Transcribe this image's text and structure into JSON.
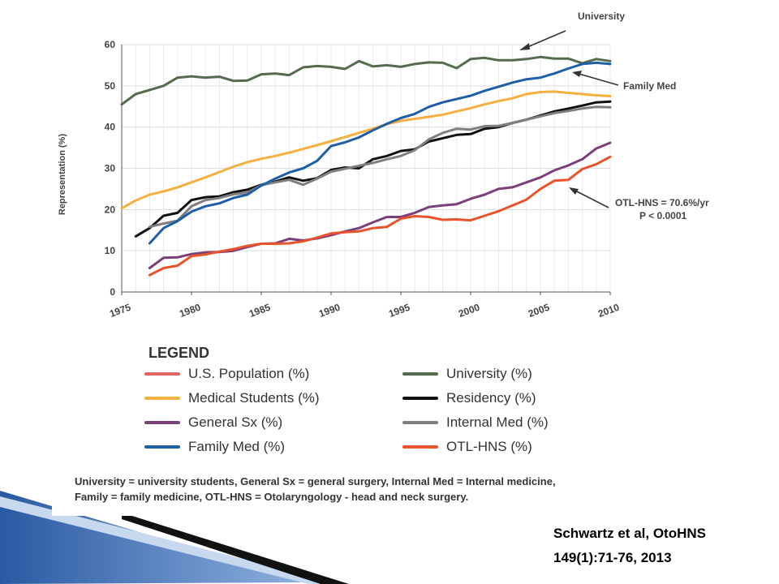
{
  "chart_data": {
    "type": "line",
    "ylabel": "Representation (%)",
    "xlabel": "",
    "xlim": [
      1975,
      2010
    ],
    "ylim": [
      0,
      60
    ],
    "x_ticks": [
      "1975",
      "1980",
      "1985",
      "1990",
      "1995",
      "2000",
      "2005",
      "2010"
    ],
    "y_ticks": [
      "0",
      "10",
      "20",
      "30",
      "40",
      "50",
      "60"
    ],
    "grid": true,
    "series": [
      {
        "name": "U.S. Population (%)",
        "color": "#e06666",
        "x": [],
        "values": []
      },
      {
        "name": "University (%)",
        "color": "#556b4e",
        "x": [
          1975,
          1976,
          1977,
          1978,
          1979,
          1980,
          1981,
          1982,
          1983,
          1984,
          1985,
          1986,
          1987,
          1988,
          1989,
          1990,
          1991,
          1992,
          1993,
          1994,
          1995,
          1996,
          1997,
          1998,
          1999,
          2000,
          2001,
          2002,
          2003,
          2004,
          2005,
          2006,
          2007,
          2008,
          2009,
          2010
        ],
        "values": [
          45.5,
          48,
          49,
          50,
          52,
          52.3,
          52,
          52.2,
          51.2,
          51.3,
          52.8,
          53,
          52.6,
          54.5,
          54.8,
          54.6,
          54.1,
          56,
          54.7,
          55,
          54.6,
          55.3,
          55.7,
          55.6,
          54.3,
          56.5,
          56.8,
          56.2,
          56.2,
          56.5,
          57,
          56.6,
          56.6,
          55.5,
          56.5,
          56
        ]
      },
      {
        "name": "Medical Students (%)",
        "color": "#f5b041",
        "x": [
          1975,
          1976,
          1977,
          1978,
          1979,
          1980,
          1981,
          1982,
          1983,
          1984,
          1985,
          1986,
          1987,
          1988,
          1989,
          1990,
          1991,
          1992,
          1993,
          1994,
          1995,
          1996,
          1997,
          1998,
          1999,
          2000,
          2001,
          2002,
          2003,
          2004,
          2005,
          2006,
          2007,
          2008,
          2009,
          2010
        ],
        "values": [
          20.3,
          22.2,
          23.6,
          24.4,
          25.4,
          26.6,
          27.8,
          29.1,
          30.4,
          31.5,
          32.3,
          33,
          33.8,
          34.7,
          35.6,
          36.6,
          37.6,
          38.6,
          39.6,
          40.7,
          41.5,
          42,
          42.5,
          43,
          43.8,
          44.6,
          45.5,
          46.3,
          47,
          48,
          48.5,
          48.6,
          48.3,
          48,
          47.7,
          47.5
        ]
      },
      {
        "name": "Residency (%)",
        "color": "#111111",
        "x": [
          1976,
          1977,
          1978,
          1979,
          1980,
          1981,
          1982,
          1983,
          1984,
          1985,
          1986,
          1987,
          1988,
          1989,
          1990,
          1991,
          1992,
          1993,
          1994,
          1995,
          1996,
          1997,
          1998,
          1999,
          2000,
          2001,
          2002,
          2003,
          2004,
          2005,
          2006,
          2007,
          2008,
          2009,
          2010
        ],
        "values": [
          13.5,
          15.5,
          18.5,
          19.2,
          22.3,
          23,
          23.2,
          24.2,
          24.8,
          26,
          26.8,
          27.8,
          27,
          27.6,
          29.6,
          30.2,
          30,
          32.2,
          33,
          34.2,
          34.6,
          36.5,
          37.3,
          38.1,
          38.3,
          39.6,
          40,
          41,
          41.8,
          42.8,
          43.8,
          44.5,
          45.2,
          46,
          46.2
        ]
      },
      {
        "name": "General Sx (%)",
        "color": "#7b3f7a",
        "x": [
          1977,
          1978,
          1979,
          1980,
          1981,
          1982,
          1983,
          1984,
          1985,
          1986,
          1987,
          1988,
          1989,
          1990,
          1991,
          1992,
          1993,
          1994,
          1995,
          1996,
          1997,
          1998,
          1999,
          2000,
          2001,
          2002,
          2003,
          2004,
          2005,
          2006,
          2007,
          2008,
          2009,
          2010
        ],
        "values": [
          5.8,
          8.3,
          8.4,
          9.2,
          9.6,
          9.7,
          10,
          10.9,
          11.7,
          11.8,
          12.9,
          12.5,
          13,
          13.8,
          14.7,
          15.5,
          16.9,
          18.2,
          18.2,
          19.2,
          20.6,
          21,
          21.3,
          22.6,
          23.6,
          25,
          25.4,
          26.6,
          27.8,
          29.5,
          30.7,
          32.2,
          34.8,
          36.2
        ]
      },
      {
        "name": "Internal Med (%)",
        "color": "#7f7f7f",
        "x": [
          1977,
          1978,
          1979,
          1980,
          1981,
          1982,
          1983,
          1984,
          1985,
          1986,
          1987,
          1988,
          1989,
          1990,
          1991,
          1992,
          1993,
          1994,
          1995,
          1996,
          1997,
          1998,
          1999,
          2000,
          2001,
          2002,
          2003,
          2004,
          2005,
          2006,
          2007,
          2008,
          2009,
          2010
        ],
        "values": [
          15.8,
          16.6,
          17.3,
          20.8,
          22.3,
          22.8,
          23.7,
          24.1,
          25.9,
          26.6,
          27.2,
          26,
          27.5,
          29.2,
          29.9,
          30.6,
          31.3,
          32.2,
          33,
          34.4,
          37,
          38.6,
          39.6,
          39.4,
          40.2,
          40.3,
          41,
          41.8,
          42.6,
          43.4,
          43.9,
          44.5,
          44.9,
          44.8
        ]
      },
      {
        "name": "Family Med (%)",
        "color": "#1f5fa8",
        "x": [
          1977,
          1978,
          1979,
          1980,
          1981,
          1982,
          1983,
          1984,
          1985,
          1986,
          1987,
          1988,
          1989,
          1990,
          1991,
          1992,
          1993,
          1994,
          1995,
          1996,
          1997,
          1998,
          1999,
          2000,
          2001,
          2002,
          2003,
          2004,
          2005,
          2006,
          2007,
          2008,
          2009,
          2010
        ],
        "values": [
          11.8,
          15.5,
          17.2,
          19.5,
          20.8,
          21.5,
          22.8,
          23.6,
          25.8,
          27.5,
          29,
          30,
          31.8,
          35.4,
          36.3,
          37.5,
          39.2,
          40.8,
          42.2,
          43.2,
          44.9,
          46,
          46.8,
          47.6,
          48.8,
          49.8,
          50.8,
          51.6,
          52,
          53,
          54.2,
          55.3,
          55.6,
          55.3
        ]
      },
      {
        "name": "OTL-HNS (%)",
        "color": "#e8532c",
        "x": [
          1977,
          1978,
          1979,
          1980,
          1981,
          1982,
          1983,
          1984,
          1985,
          1986,
          1987,
          1988,
          1989,
          1990,
          1991,
          1992,
          1993,
          1994,
          1995,
          1996,
          1997,
          1998,
          1999,
          2000,
          2001,
          2002,
          2003,
          2004,
          2005,
          2006,
          2007,
          2008,
          2009,
          2010
        ],
        "values": [
          4.1,
          5.8,
          6.4,
          8.7,
          9.1,
          9.8,
          10.4,
          11.2,
          11.7,
          11.7,
          11.8,
          12.3,
          13.2,
          14.2,
          14.5,
          14.7,
          15.5,
          15.8,
          17.8,
          18.4,
          18.2,
          17.5,
          17.6,
          17.4,
          18.5,
          19.6,
          21,
          22.4,
          25,
          27,
          27.2,
          29.8,
          31,
          32.8
        ]
      }
    ],
    "annotations": {
      "university": "University",
      "family_med": "Family Med",
      "otl_line1": "OTL-HNS = 70.6%/yr",
      "otl_line2": "P < 0.0001"
    }
  },
  "legend": {
    "title": "LEGEND",
    "items": [
      {
        "label": "U.S. Population (%)",
        "color": "#e06666"
      },
      {
        "label": "University (%)",
        "color": "#556b4e"
      },
      {
        "label": "Medical Students (%)",
        "color": "#f5b041"
      },
      {
        "label": "Residency (%)",
        "color": "#111111"
      },
      {
        "label": "General Sx (%)",
        "color": "#7b3f7a"
      },
      {
        "label": "Internal Med (%)",
        "color": "#7f7f7f"
      },
      {
        "label": "Family Med (%)",
        "color": "#1f5fa8"
      },
      {
        "label": "OTL-HNS (%)",
        "color": "#e8532c"
      }
    ]
  },
  "footnote": {
    "line1": "University = university students, General Sx = general surgery, Internal Med = Internal medicine,",
    "line2": "Family = family medicine, OTL-HNS = Otolaryngology - head and neck surgery."
  },
  "citation": {
    "line1": "Schwartz et al, OtoHNS",
    "line2": "149(1):71-76, 2013"
  },
  "colors": {
    "slide_accent_blue": "#3d6fb6",
    "slide_accent_light": "#9cb8e0"
  }
}
